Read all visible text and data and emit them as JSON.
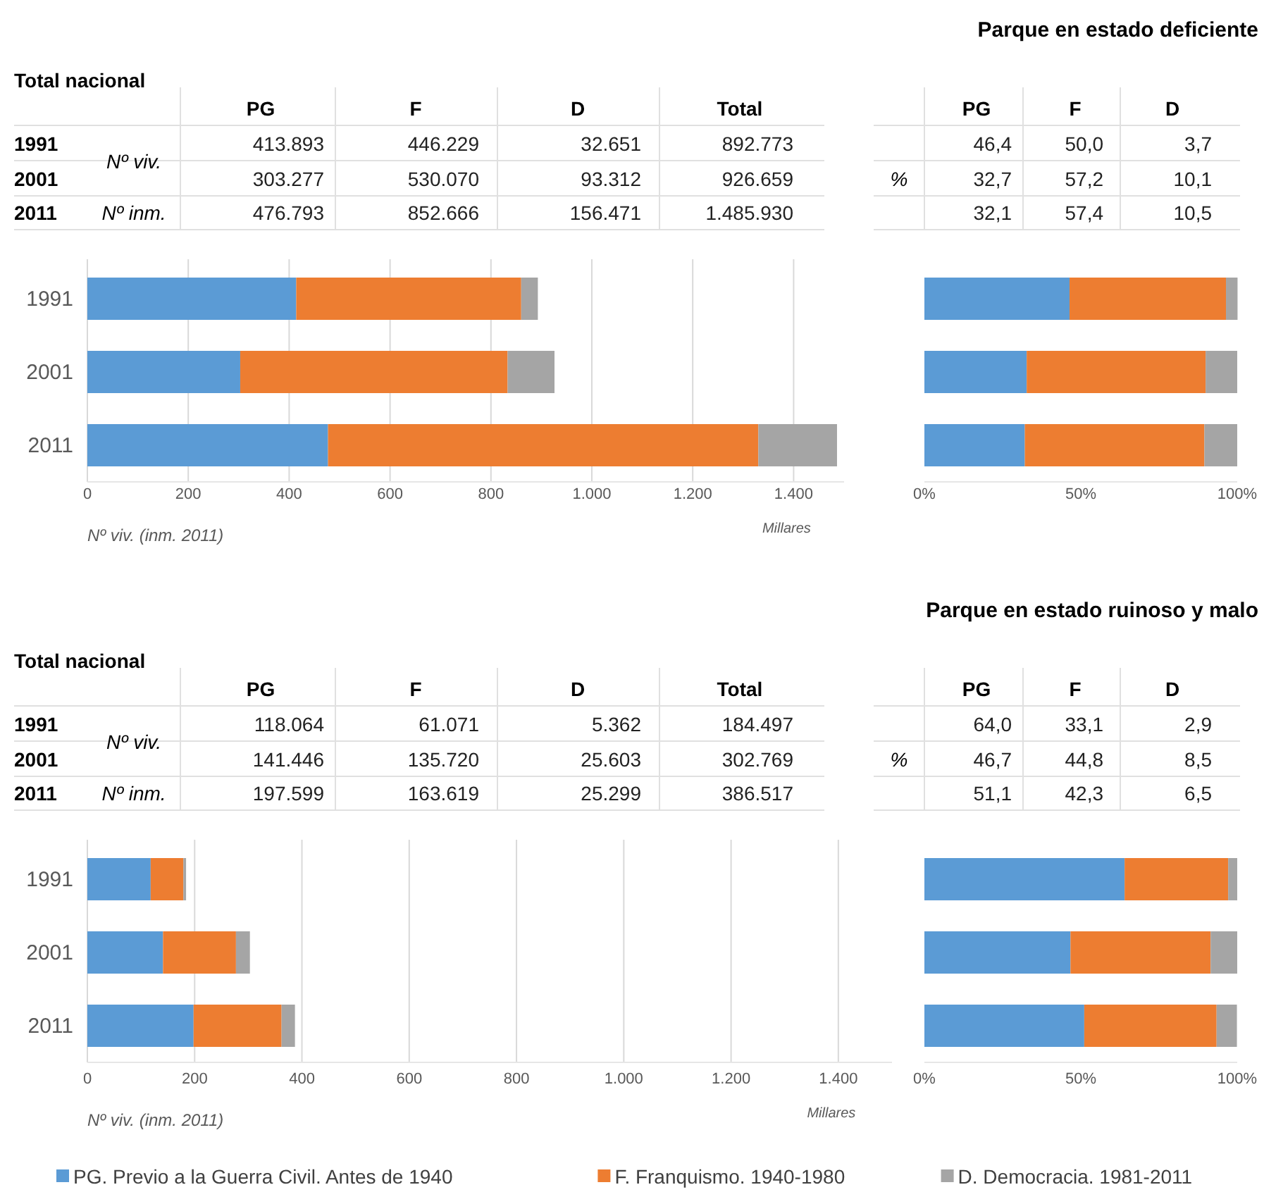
{
  "chart_data": [
    {
      "type": "other",
      "title": "Parque en estado deficiente",
      "subtitle": "Total nacional",
      "categories": [
        "PG",
        "F",
        "D",
        "Total"
      ],
      "y_categories": [
        "1991",
        "2001",
        "2011"
      ],
      "y2_categories": [
        "Nº viv.",
        null,
        "Nº inm."
      ],
      "cell_labels": [
        [
          "413.893",
          "446.229",
          "32.651",
          "892.773"
        ],
        [
          "303.277",
          "530.070",
          "93.312",
          "926.659"
        ],
        [
          "476.793",
          "852.666",
          "156.471",
          "1.485.930"
        ]
      ]
    },
    {
      "type": "other",
      "categories": [
        "PG",
        "F",
        "D"
      ],
      "y_categories": [
        null,
        "%",
        null
      ],
      "cell_labels": [
        [
          "46,4",
          "50,0",
          "3,7"
        ],
        [
          "32,7",
          "57,2",
          "10,1"
        ],
        [
          "32,1",
          "57,4",
          "10,5"
        ]
      ]
    },
    {
      "type": "bar",
      "orientation": "horizontal",
      "stacked": true,
      "categories": [
        "1991",
        "2001",
        "2011"
      ],
      "series": [
        {
          "name": "PG. Previo a la Guerra Civil. Antes de 1940",
          "color": "#5b9bd5",
          "values": [
            414,
            303,
            477
          ]
        },
        {
          "name": "F. Franquismo. 1940-1980",
          "color": "#ed7d31",
          "values": [
            446,
            530,
            853
          ]
        },
        {
          "name": "D. Democracia. 1981-2011",
          "color": "#a5a5a5",
          "values": [
            33,
            93,
            156
          ]
        }
      ],
      "xlim": [
        0,
        1500
      ],
      "xticks": [
        0,
        200,
        400,
        600,
        800,
        {
          "value": 1000,
          "label": "1.000"
        },
        {
          "value": 1200,
          "label": "1.200"
        },
        {
          "value": 1400,
          "label": "1.400"
        }
      ],
      "xlabel": "Millares",
      "grid": "x",
      "legend": "bottom",
      "annotations": [
        "Nº viv. (inm. 2011)"
      ]
    },
    {
      "type": "bar",
      "orientation": "horizontal",
      "stacked": true,
      "categories": [
        "1991",
        "2001",
        "2011"
      ],
      "series": [
        {
          "color": "#5b9bd5",
          "values": [
            46.4,
            32.7,
            32.1
          ]
        },
        {
          "color": "#ed7d31",
          "values": [
            50.0,
            57.2,
            57.4
          ]
        },
        {
          "color": "#a5a5a5",
          "values": [
            3.7,
            10.1,
            10.5
          ]
        }
      ],
      "xlim": [
        0,
        100
      ],
      "xticks": [
        {
          "value": 0,
          "label": "0%"
        },
        {
          "value": 50,
          "label": "50%"
        },
        {
          "value": 100,
          "label": "100%"
        }
      ],
      "tick_labels": "x"
    },
    {
      "type": "other",
      "title": "Parque en estado ruinoso y malo",
      "subtitle": "Total nacional",
      "categories": [
        "PG",
        "F",
        "D",
        "Total"
      ],
      "y_categories": [
        "1991",
        "2001",
        "2011"
      ],
      "y2_categories": [
        "Nº viv.",
        null,
        "Nº inm."
      ],
      "cell_labels": [
        [
          "118.064",
          "61.071",
          "5.362",
          "184.497"
        ],
        [
          "141.446",
          "135.720",
          "25.603",
          "302.769"
        ],
        [
          "197.599",
          "163.619",
          "25.299",
          "386.517"
        ]
      ]
    },
    {
      "type": "other",
      "categories": [
        "PG",
        "F",
        "D"
      ],
      "y_categories": [
        null,
        "%",
        null
      ],
      "cell_labels": [
        [
          "64,0",
          "33,1",
          "2,9"
        ],
        [
          "46,7",
          "44,8",
          "8,5"
        ],
        [
          "51,1",
          "42,3",
          "6,5"
        ]
      ]
    },
    {
      "type": "bar",
      "orientation": "horizontal",
      "stacked": true,
      "categories": [
        "1991",
        "2001",
        "2011"
      ],
      "series": [
        {
          "color": "#5b9bd5",
          "values": [
            118,
            141,
            198
          ]
        },
        {
          "color": "#ed7d31",
          "values": [
            61,
            136,
            164
          ]
        },
        {
          "color": "#a5a5a5",
          "values": [
            5,
            26,
            25
          ]
        }
      ],
      "xlim": [
        0,
        1500
      ],
      "xticks": [
        0,
        200,
        400,
        600,
        800,
        {
          "value": 1000,
          "label": "1.000"
        },
        {
          "value": 1200,
          "label": "1.200"
        },
        {
          "value": 1400,
          "label": "1.400"
        }
      ],
      "xlabel": "Millares",
      "grid": "x",
      "annotations": [
        "Nº viv. (inm. 2011)"
      ]
    },
    {
      "type": "bar",
      "orientation": "horizontal",
      "stacked": true,
      "categories": [
        "1991",
        "2001",
        "2011"
      ],
      "series": [
        {
          "color": "#5b9bd5",
          "values": [
            64.0,
            46.7,
            51.1
          ]
        },
        {
          "color": "#ed7d31",
          "values": [
            33.1,
            44.8,
            42.3
          ]
        },
        {
          "color": "#a5a5a5",
          "values": [
            2.9,
            8.5,
            6.5
          ]
        }
      ],
      "xlim": [
        0,
        100
      ],
      "xticks": [
        {
          "value": 0,
          "label": "0%"
        },
        {
          "value": 50,
          "label": "50%"
        },
        {
          "value": 100,
          "label": "100%"
        }
      ],
      "tick_labels": "x"
    }
  ]
}
